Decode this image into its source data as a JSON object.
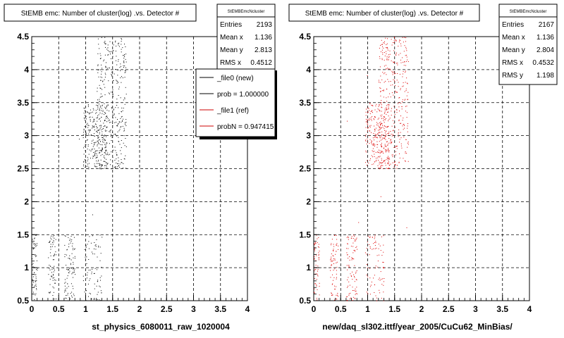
{
  "panels": [
    {
      "title": "StEMB emc: Number of cluster(log) .vs. Detector #",
      "stats": {
        "name": "StEMBEmcNcluster",
        "rows": [
          {
            "label": "Entries",
            "value": "2193"
          },
          {
            "label": "Mean x",
            "value": "1.136"
          },
          {
            "label": "Mean y",
            "value": "2.813"
          },
          {
            "label": "RMS x",
            "value": "0.4512"
          }
        ]
      },
      "legend": {
        "entries": [
          {
            "label": "_file0 (new)",
            "color": "#000000"
          },
          {
            "label": "prob = 1.000000",
            "color": "#000000"
          },
          {
            "label": "_file1 (ref)",
            "color": "#cc0000"
          },
          {
            "label": "probN = 0.947415",
            "color": "#cc0000"
          }
        ]
      },
      "xlabel": "st_physics_6080011_raw_1020004",
      "point_color": "#000000"
    },
    {
      "title": "StEMB emc: Number of cluster(log) .vs. Detector #",
      "stats": {
        "name": "StEMBEmcNcluster",
        "rows": [
          {
            "label": "Entries",
            "value": "2167"
          },
          {
            "label": "Mean x",
            "value": "1.136"
          },
          {
            "label": "Mean y",
            "value": "2.804"
          },
          {
            "label": "RMS x",
            "value": "0.4532"
          },
          {
            "label": "RMS y",
            "value": "1.198"
          }
        ]
      },
      "xlabel": "new/daq_sl302.ittf/year_2005/CuCu62_MinBias/",
      "point_color": "#dd0000"
    }
  ],
  "chart_data": [
    {
      "type": "scatter",
      "title": "StEMB emc: Number of cluster(log) .vs. Detector #",
      "xlabel": "st_physics_6080011_raw_1020004",
      "ylabel": "",
      "xlim": [
        0,
        4
      ],
      "ylim": [
        0.5,
        4.5
      ],
      "xticks": [
        "0",
        "0.5",
        "1",
        "1.5",
        "2",
        "2.5",
        "3",
        "3.5",
        "4"
      ],
      "yticks": [
        "0.5",
        "1",
        "1.5",
        "2",
        "2.5",
        "3",
        "3.5",
        "4",
        "4.5"
      ],
      "grid": true,
      "series": [
        {
          "x_bands": [
            [
              0.0,
              0.1
            ],
            [
              0.3,
              0.45
            ],
            [
              0.6,
              0.8
            ],
            [
              0.95,
              1.3
            ],
            [
              1.25,
              1.75
            ]
          ],
          "y_ranges": [
            [
              0.5,
              1.5
            ],
            [
              2.5,
              4.5
            ]
          ],
          "entries": 2193,
          "mean_x": 1.136,
          "mean_y": 2.813,
          "rms_x": 0.4512
        }
      ]
    },
    {
      "type": "scatter",
      "title": "StEMB emc: Number of cluster(log) .vs. Detector #",
      "xlabel": "new/daq_sl302.ittf/year_2005/CuCu62_MinBias/",
      "ylabel": "",
      "xlim": [
        0,
        4
      ],
      "ylim": [
        0.5,
        4.5
      ],
      "xticks": [
        "0",
        "0.5",
        "1",
        "1.5",
        "2",
        "2.5",
        "3",
        "3.5",
        "4"
      ],
      "yticks": [
        "0.5",
        "1",
        "1.5",
        "2",
        "2.5",
        "3",
        "3.5",
        "4",
        "4.5"
      ],
      "grid": true,
      "series": [
        {
          "x_bands": [
            [
              0.0,
              0.1
            ],
            [
              0.3,
              0.45
            ],
            [
              0.6,
              0.8
            ],
            [
              0.95,
              1.3
            ],
            [
              1.25,
              1.75
            ]
          ],
          "y_ranges": [
            [
              0.5,
              1.5
            ],
            [
              2.5,
              4.5
            ]
          ],
          "entries": 2167,
          "mean_x": 1.136,
          "mean_y": 2.804,
          "rms_x": 0.4532,
          "rms_y": 1.198
        }
      ]
    }
  ]
}
